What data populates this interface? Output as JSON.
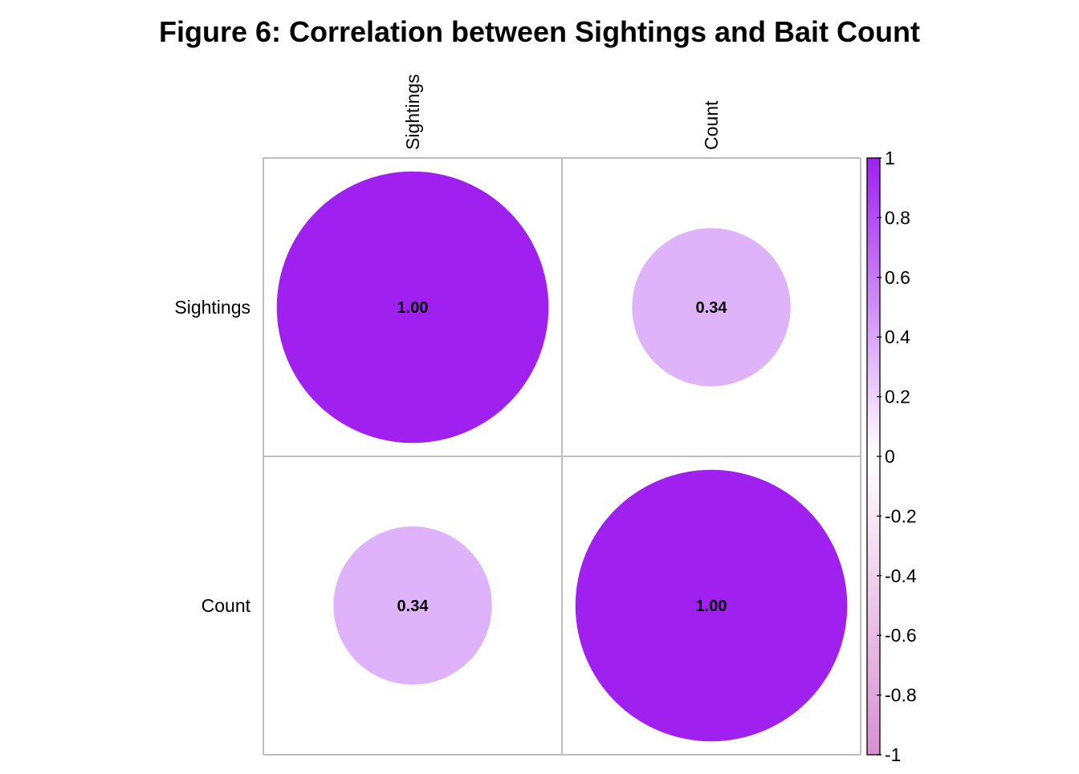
{
  "chart_data": {
    "type": "heatmap",
    "subtype": "correlation-circle-matrix",
    "title": "Figure 6: Correlation between Sightings and Bait Count",
    "variables": [
      "Sightings",
      "Count"
    ],
    "matrix": [
      [
        1.0,
        0.34
      ],
      [
        0.34,
        1.0
      ]
    ],
    "cell_labels": [
      [
        "1.00",
        "0.34"
      ],
      [
        "0.34",
        "1.00"
      ]
    ],
    "legend": {
      "range": [
        -1,
        1
      ],
      "ticks": [
        "1",
        "0.8",
        "0.6",
        "0.4",
        "0.2",
        "0",
        "-0.2",
        "-0.4",
        "-0.6",
        "-0.8",
        "-1"
      ],
      "tick_values": [
        1,
        0.8,
        0.6,
        0.4,
        0.2,
        0,
        -0.2,
        -0.4,
        -0.6,
        -0.8,
        -1
      ],
      "placement": "right"
    },
    "colors": {
      "positive": "#a020f0",
      "zero": "#ffffff",
      "negative": "#d98fd1",
      "grid": "#bebebe"
    }
  }
}
